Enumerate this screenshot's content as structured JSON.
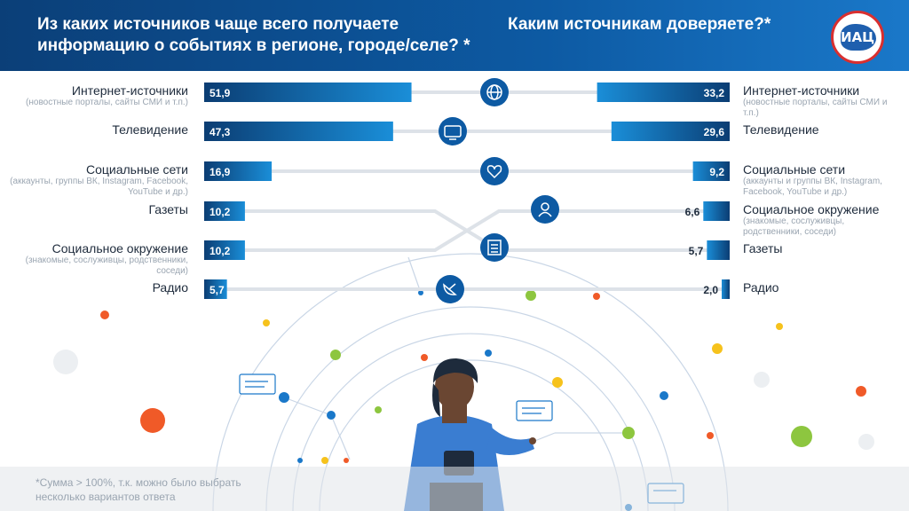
{
  "header": {
    "title_left": "Из каких источников чаще всего получаете информацию о событиях в регионе, городе/селе? *",
    "title_right": "Каким источникам доверяете?*",
    "logo_text": "ИАЦ"
  },
  "footnote": "*Сумма  > 100%, т.к. можно было выбрать несколько вариантов ответа",
  "colors": {
    "header": "#0d5aa3",
    "bar_start": "#0b3d73",
    "bar_end": "#1a8ed8",
    "icon_circle": "#0d5aa3"
  },
  "chart_data": [
    {
      "type": "bar",
      "title": "Из каких источников чаще всего получаете информацию о событиях в регионе, городе/селе? *",
      "orientation": "horizontal",
      "categories": [
        "Интернет-источники",
        "Телевидение",
        "Социальные сети",
        "Газеты",
        "Социальное окружение",
        "Радио"
      ],
      "subtitles": [
        "(новостные порталы, сайты СМИ и т.п.)",
        "",
        "(аккаунты, группы ВК, Instagram, Facebook, YouTube и др.)",
        "",
        "(знакомые, сослуживцы, родственники, соседи)",
        ""
      ],
      "values": [
        51.9,
        47.3,
        16.9,
        10.2,
        10.2,
        5.7
      ],
      "labels": [
        "51,9",
        "47,3",
        "16,9",
        "10,2",
        "10,2",
        "5,7"
      ],
      "icons": [
        "globe-icon",
        "tv-icon",
        "heart-icon",
        "newspaper-icon",
        "person-icon",
        "satellite-dish-icon"
      ]
    },
    {
      "type": "bar",
      "title": "Каким источникам доверяете?*",
      "orientation": "horizontal",
      "categories": [
        "Интернет-источники",
        "Телевидение",
        "Социальные сети",
        "Социальное окружение",
        "Газеты",
        "Радио"
      ],
      "subtitles": [
        "(новостные порталы, сайты СМИ и т.п.)",
        "",
        "(аккаунты и группы ВК, Instagram, Facebook, YouTube и др.)",
        "(знакомые, сослуживцы, родственники, соседи)",
        "",
        ""
      ],
      "values": [
        33.2,
        29.6,
        9.2,
        6.6,
        5.7,
        2.0
      ],
      "labels": [
        "33,2",
        "29,6",
        "9,2",
        "6,6",
        "5,7",
        "2,0"
      ]
    }
  ]
}
